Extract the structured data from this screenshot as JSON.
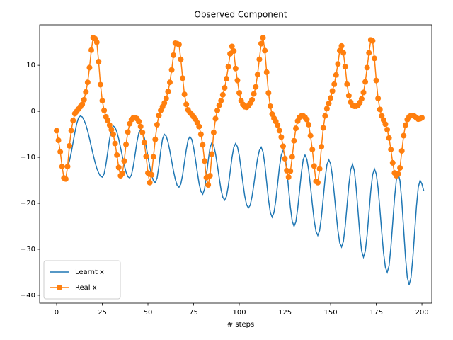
{
  "chart_data": {
    "type": "line",
    "title": "Observed Component",
    "x_label": "# steps",
    "x": [
      0,
      1,
      2,
      3,
      4,
      5,
      6,
      7,
      8,
      9,
      10,
      11,
      12,
      13,
      14,
      15,
      16,
      17,
      18,
      19,
      20,
      21,
      22,
      23,
      24,
      25,
      26,
      27,
      28,
      29,
      30,
      31,
      32,
      33,
      34,
      35,
      36,
      37,
      38,
      39,
      40,
      41,
      42,
      43,
      44,
      45,
      46,
      47,
      48,
      49,
      50,
      51,
      52,
      53,
      54,
      55,
      56,
      57,
      58,
      59,
      60,
      61,
      62,
      63,
      64,
      65,
      66,
      67,
      68,
      69,
      70,
      71,
      72,
      73,
      74,
      75,
      76,
      77,
      78,
      79,
      80,
      81,
      82,
      83,
      84,
      85,
      86,
      87,
      88,
      89,
      90,
      91,
      92,
      93,
      94,
      95,
      96,
      97,
      98,
      99,
      100,
      101,
      102,
      103,
      104,
      105,
      106,
      107,
      108,
      109,
      110,
      111,
      112,
      113,
      114,
      115,
      116,
      117,
      118,
      119,
      120,
      121,
      122,
      123,
      124,
      125,
      126,
      127,
      128,
      129,
      130,
      131,
      132,
      133,
      134,
      135,
      136,
      137,
      138,
      139,
      140,
      141,
      142,
      143,
      144,
      145,
      146,
      147,
      148,
      149,
      150,
      151,
      152,
      153,
      154,
      155,
      156,
      157,
      158,
      159,
      160,
      161,
      162,
      163,
      164,
      165,
      166,
      167,
      168,
      169,
      170,
      171,
      172,
      173,
      174,
      175,
      176,
      177,
      178,
      179,
      180,
      181,
      182,
      183,
      184,
      185,
      186,
      187,
      188,
      189,
      190,
      191,
      192,
      193,
      194,
      195,
      196,
      197,
      198,
      199,
      200,
      201
    ],
    "series": [
      {
        "name": "Learnt x",
        "color": "#1f77b4",
        "marker": false,
        "values": [
          null,
          null,
          null,
          null,
          null,
          -12.5,
          -12.1,
          -10.8,
          -9.0,
          -6.8,
          -4.6,
          -2.7,
          -1.4,
          -1.0,
          -1.2,
          -1.9,
          -2.9,
          -4.3,
          -5.9,
          -7.7,
          -9.4,
          -11.0,
          -12.4,
          -13.4,
          -14.1,
          -14.3,
          -13.6,
          -11.5,
          -8.8,
          -6.0,
          -3.9,
          -3.2,
          -3.5,
          -4.5,
          -6.0,
          -7.9,
          -9.8,
          -11.7,
          -13.2,
          -14.2,
          -14.5,
          -13.8,
          -11.9,
          -9.3,
          -6.6,
          -4.7,
          -4.0,
          -4.4,
          -5.7,
          -7.6,
          -9.8,
          -12.0,
          -13.8,
          -15.1,
          -15.5,
          -14.5,
          -11.9,
          -8.6,
          -6.0,
          -5.0,
          -5.4,
          -6.7,
          -8.6,
          -10.8,
          -13.0,
          -14.8,
          -16.1,
          -16.5,
          -15.8,
          -13.8,
          -11.0,
          -8.3,
          -6.2,
          -5.5,
          -6.1,
          -7.9,
          -10.4,
          -13.1,
          -15.7,
          -17.4,
          -18.0,
          -16.9,
          -14.1,
          -10.7,
          -7.9,
          -6.8,
          -7.4,
          -9.2,
          -11.7,
          -14.4,
          -17.0,
          -18.7,
          -19.3,
          -18.5,
          -16.2,
          -13.2,
          -10.1,
          -7.8,
          -7.0,
          -7.7,
          -9.6,
          -12.5,
          -15.6,
          -18.4,
          -20.3,
          -21.0,
          -20.4,
          -18.5,
          -15.9,
          -12.9,
          -10.3,
          -8.5,
          -7.8,
          -8.8,
          -11.6,
          -15.4,
          -19.2,
          -22.0,
          -23.0,
          -22.0,
          -19.4,
          -15.8,
          -12.1,
          -9.5,
          -8.5,
          -9.6,
          -12.6,
          -16.8,
          -20.9,
          -23.9,
          -25.0,
          -24.0,
          -21.1,
          -17.3,
          -13.4,
          -10.5,
          -9.5,
          -10.4,
          -12.8,
          -16.3,
          -20.2,
          -23.7,
          -26.1,
          -27.0,
          -25.9,
          -22.9,
          -18.8,
          -14.6,
          -11.6,
          -10.5,
          -11.4,
          -14.1,
          -17.9,
          -22.1,
          -25.9,
          -28.6,
          -29.5,
          -28.3,
          -25.0,
          -20.5,
          -16.0,
          -12.7,
          -11.5,
          -12.9,
          -16.6,
          -21.6,
          -26.7,
          -30.4,
          -31.7,
          -30.4,
          -26.9,
          -22.1,
          -17.3,
          -13.8,
          -12.5,
          -13.6,
          -16.7,
          -21.3,
          -26.3,
          -30.8,
          -33.9,
          -35.0,
          -33.6,
          -29.6,
          -24.3,
          -18.9,
          -14.9,
          -13.5,
          -15.1,
          -19.6,
          -25.6,
          -31.7,
          -36.1,
          -37.7,
          -36.2,
          -32.0,
          -26.4,
          -20.7,
          -16.5,
          -15.0,
          -15.8,
          -17.3
        ]
      },
      {
        "name": "Real x",
        "color": "#ff7f0e",
        "marker": true,
        "values": [
          -4.2,
          -6.3,
          -8.8,
          -12.0,
          -14.5,
          -14.7,
          -12.0,
          -7.5,
          -4.2,
          -2.0,
          -0.5,
          0.0,
          0.5,
          1.0,
          1.5,
          2.5,
          4.2,
          6.3,
          9.5,
          13.3,
          16.0,
          15.8,
          15.0,
          10.8,
          5.8,
          2.3,
          0.2,
          -1.2,
          -2.0,
          -3.0,
          -4.0,
          -5.0,
          -7.0,
          -9.5,
          -12.2,
          -14.0,
          -13.5,
          -10.8,
          -7.2,
          -4.5,
          -2.7,
          -1.8,
          -1.4,
          -1.4,
          -1.6,
          -2.2,
          -3.3,
          -4.6,
          -6.8,
          -9.8,
          -13.4,
          -15.5,
          -13.8,
          -9.9,
          -6.1,
          -2.9,
          -0.9,
          0.2,
          1.0,
          1.8,
          2.8,
          4.3,
          6.3,
          9.0,
          12.2,
          14.8,
          14.7,
          14.5,
          11.3,
          7.2,
          3.7,
          1.5,
          0.3,
          -0.3,
          -0.7,
          -1.2,
          -1.7,
          -2.5,
          -3.3,
          -5.0,
          -7.3,
          -10.8,
          -14.4,
          -16.0,
          -14.0,
          -9.3,
          -4.6,
          -1.6,
          0.2,
          1.3,
          2.3,
          3.6,
          5.1,
          7.1,
          9.7,
          12.5,
          14.1,
          13.1,
          9.3,
          6.7,
          4.0,
          2.3,
          1.5,
          1.0,
          0.9,
          1.2,
          1.8,
          2.5,
          3.8,
          5.3,
          8.0,
          11.3,
          14.7,
          16.0,
          13.2,
          8.5,
          4.0,
          1.1,
          -0.6,
          -1.5,
          -2.2,
          -3.0,
          -4.2,
          -5.6,
          -7.6,
          -10.3,
          -12.9,
          -14.3,
          -13.0,
          -9.9,
          -6.4,
          -3.7,
          -2.1,
          -1.3,
          -1.0,
          -1.0,
          -1.3,
          -1.8,
          -2.9,
          -5.3,
          -8.3,
          -11.9,
          -15.2,
          -15.5,
          -12.5,
          -7.7,
          -3.6,
          -1.0,
          0.6,
          1.7,
          2.9,
          4.4,
          5.9,
          7.9,
          10.3,
          13.2,
          14.2,
          12.7,
          9.7,
          5.9,
          3.4,
          2.0,
          1.3,
          1.1,
          1.1,
          1.3,
          1.9,
          2.7,
          4.1,
          6.4,
          9.5,
          12.7,
          15.5,
          15.3,
          11.5,
          6.7,
          2.8,
          0.4,
          -1.0,
          -1.9,
          -2.8,
          -4.0,
          -5.8,
          -8.3,
          -11.2,
          -13.4,
          -14.0,
          -13.6,
          -12.3,
          -8.6,
          -5.3,
          -3.0,
          -1.8,
          -1.2,
          -0.9,
          -0.9,
          -1.1,
          -1.4,
          -1.7,
          -1.6,
          -1.4,
          null
        ]
      }
    ],
    "xlim": [
      -9.3,
      205.4
    ],
    "ylim": [
      -41.7,
      18.8
    ],
    "xticks": [
      0,
      25,
      50,
      75,
      100,
      125,
      150,
      175,
      200
    ],
    "yticks": [
      {
        "value": -40,
        "label": "−40"
      },
      {
        "value": -30,
        "label": "−30"
      },
      {
        "value": -20,
        "label": "−20"
      },
      {
        "value": -10,
        "label": "−10"
      },
      0,
      10
    ],
    "grid": false,
    "legend": "lower left"
  }
}
